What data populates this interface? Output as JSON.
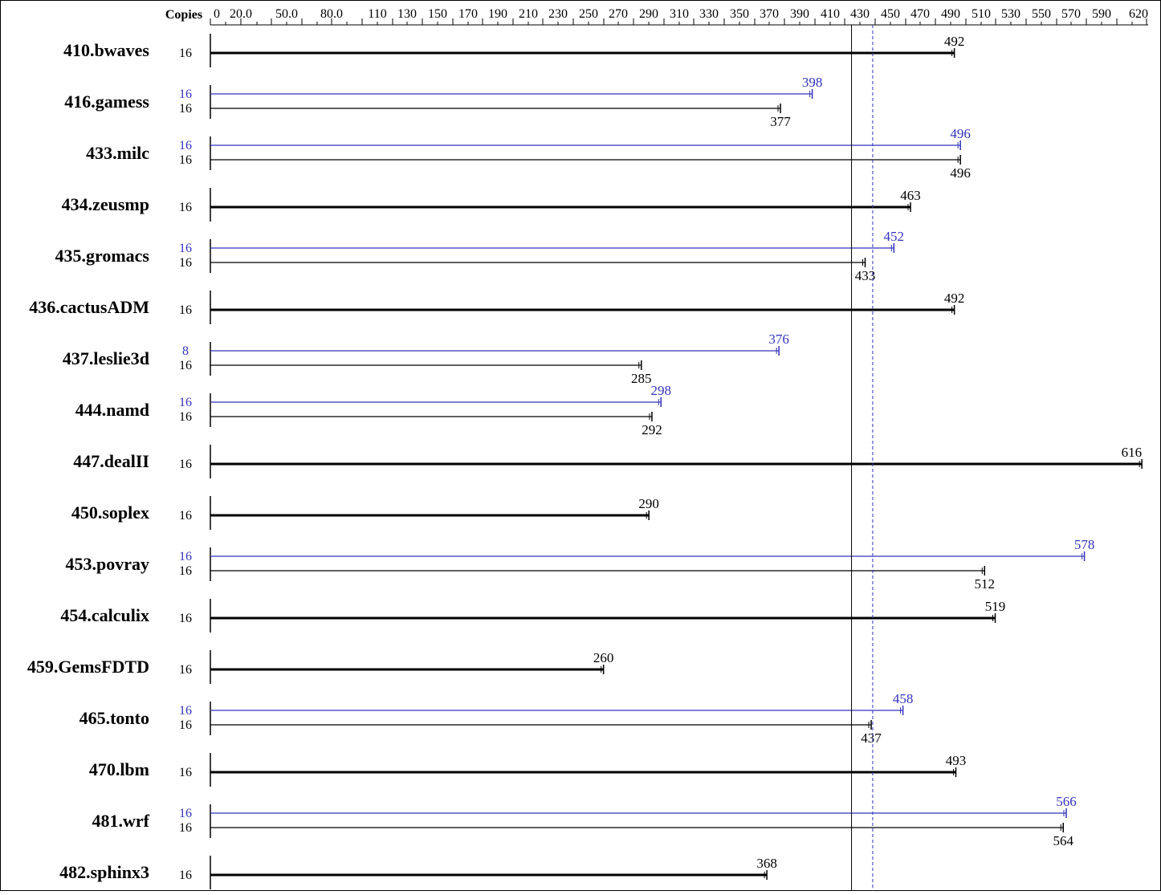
{
  "chart_data": {
    "type": "bar",
    "orientation": "horizontal",
    "axis": {
      "title": "Copies",
      "ticks": [
        0,
        20.0,
        50.0,
        80.0,
        110,
        130,
        150,
        170,
        190,
        210,
        230,
        250,
        270,
        290,
        310,
        330,
        350,
        370,
        390,
        410,
        430,
        450,
        470,
        490,
        510,
        530,
        550,
        570,
        590,
        620
      ],
      "tick_labels": [
        "0",
        "20.0",
        "50.0",
        "80.0",
        "110",
        "130",
        "150",
        "170",
        "190",
        "210",
        "230",
        "250",
        "270",
        "290",
        "310",
        "330",
        "350",
        "370",
        "390",
        "410",
        "430",
        "450",
        "470",
        "490",
        "510",
        "530",
        "550",
        "570",
        "590",
        "620"
      ],
      "xlim": [
        0,
        620
      ],
      "grid": false
    },
    "reference_lines": [
      {
        "series": "base",
        "value": 424,
        "style": "solid"
      },
      {
        "series": "peak",
        "value": 438,
        "style": "dashed"
      }
    ],
    "colors": {
      "base": "#000000",
      "peak": "#3333bb"
    },
    "benchmarks": [
      {
        "name": "410.bwaves",
        "base": {
          "copies": "16",
          "value": 492
        }
      },
      {
        "name": "416.gamess",
        "peak": {
          "copies": "16",
          "value": 398
        },
        "base": {
          "copies": "16",
          "value": 377
        }
      },
      {
        "name": "433.milc",
        "peak": {
          "copies": "16",
          "value": 496
        },
        "base": {
          "copies": "16",
          "value": 496
        }
      },
      {
        "name": "434.zeusmp",
        "base": {
          "copies": "16",
          "value": 463
        }
      },
      {
        "name": "435.gromacs",
        "peak": {
          "copies": "16",
          "value": 452
        },
        "base": {
          "copies": "16",
          "value": 433
        }
      },
      {
        "name": "436.cactusADM",
        "base": {
          "copies": "16",
          "value": 492
        }
      },
      {
        "name": "437.leslie3d",
        "peak": {
          "copies": "8",
          "value": 376
        },
        "base": {
          "copies": "16",
          "value": 285
        }
      },
      {
        "name": "444.namd",
        "peak": {
          "copies": "16",
          "value": 298
        },
        "base": {
          "copies": "16",
          "value": 292
        }
      },
      {
        "name": "447.dealII",
        "base": {
          "copies": "16",
          "value": 616
        }
      },
      {
        "name": "450.soplex",
        "base": {
          "copies": "16",
          "value": 290
        }
      },
      {
        "name": "453.povray",
        "peak": {
          "copies": "16",
          "value": 578
        },
        "base": {
          "copies": "16",
          "value": 512
        }
      },
      {
        "name": "454.calculix",
        "base": {
          "copies": "16",
          "value": 519
        }
      },
      {
        "name": "459.GemsFDTD",
        "base": {
          "copies": "16",
          "value": 260
        }
      },
      {
        "name": "465.tonto",
        "peak": {
          "copies": "16",
          "value": 458
        },
        "base": {
          "copies": "16",
          "value": 437
        }
      },
      {
        "name": "470.lbm",
        "base": {
          "copies": "16",
          "value": 493
        }
      },
      {
        "name": "481.wrf",
        "peak": {
          "copies": "16",
          "value": 566
        },
        "base": {
          "copies": "16",
          "value": 564
        }
      },
      {
        "name": "482.sphinx3",
        "base": {
          "copies": "16",
          "value": 368
        }
      }
    ]
  }
}
